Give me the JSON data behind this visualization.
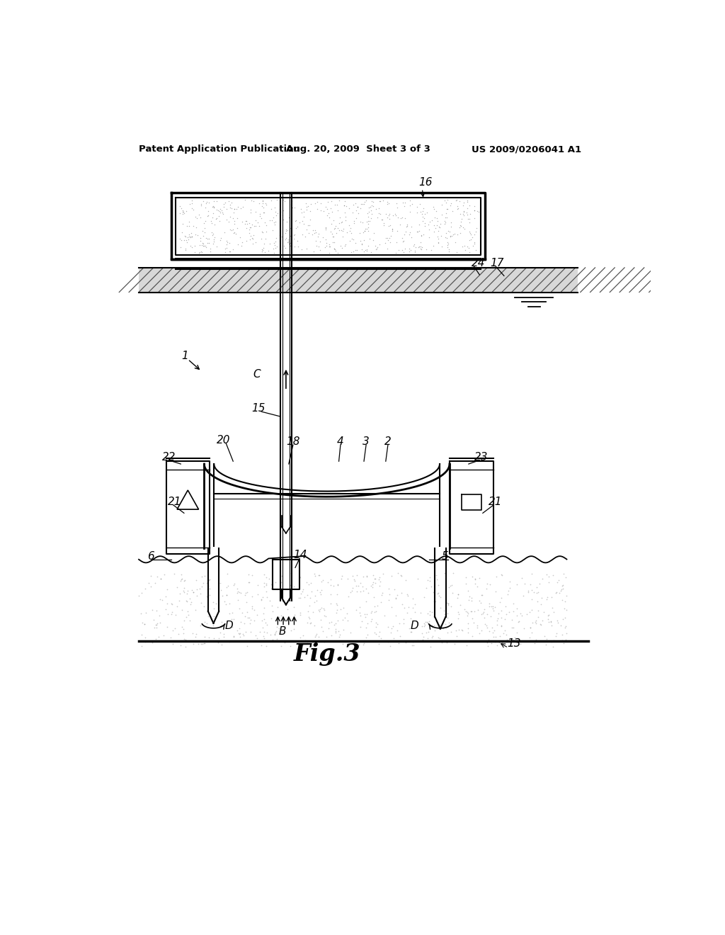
{
  "bg_color": "#ffffff",
  "header_left": "Patent Application Publication",
  "header_mid": "Aug. 20, 2009  Sheet 3 of 3",
  "header_right": "US 2009/0206041 A1",
  "fig_label": "Fig.3"
}
